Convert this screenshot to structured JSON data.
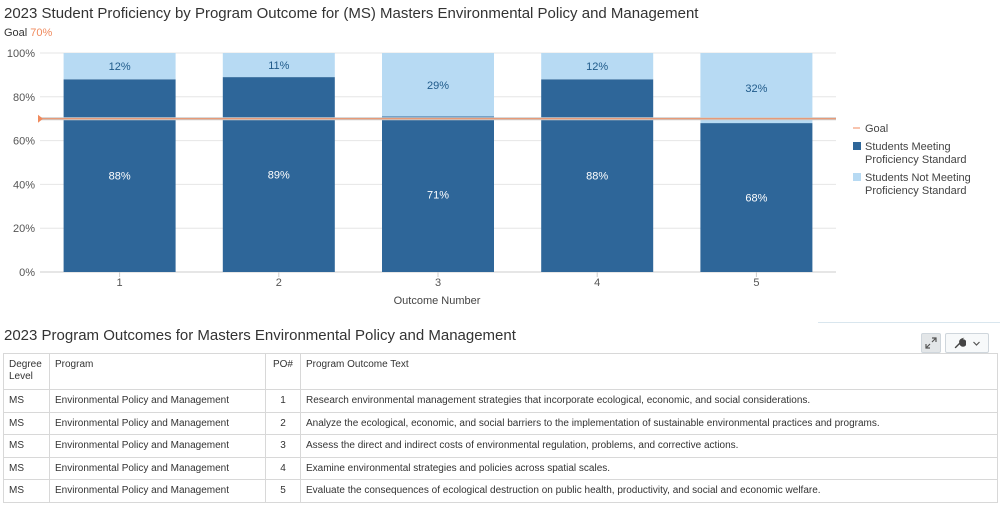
{
  "chart_title": "2023 Student Proficiency by Program Outcome for (MS) Masters Environmental Policy and Management",
  "goal_caption": {
    "label": "Goal",
    "value": "70%"
  },
  "chart_data": {
    "type": "bar",
    "stacked": true,
    "categories": [
      "1",
      "2",
      "3",
      "4",
      "5"
    ],
    "series": [
      {
        "name": "Students Meeting Proficiency Standard",
        "values": [
          88,
          89,
          71,
          88,
          68
        ],
        "labels": [
          "88%",
          "89%",
          "71%",
          "88%",
          "68%"
        ]
      },
      {
        "name": "Students Not Meeting Proficiency Standard",
        "values": [
          12,
          11,
          29,
          12,
          32
        ],
        "labels": [
          "12%",
          "11%",
          "29%",
          "12%",
          "32%"
        ]
      }
    ],
    "goal": {
      "name": "Goal",
      "value": 70
    },
    "xlabel": "Outcome Number",
    "ylabel": "",
    "ylim": [
      0,
      100
    ],
    "yticks": [
      "0%",
      "20%",
      "40%",
      "60%",
      "80%",
      "100%"
    ],
    "grid": true,
    "legend_position": "right",
    "colors": {
      "meeting": "#2e6699",
      "not_meeting": "#b7daf3",
      "goal": "#f08a5d"
    }
  },
  "legend": {
    "goal": "Goal",
    "meeting": [
      "Students Meeting",
      "Proficiency Standard"
    ],
    "not_meeting": [
      "Students Not Meeting",
      "Proficiency Standard"
    ]
  },
  "table": {
    "title": "2023 Program Outcomes for Masters Environmental Policy and Management",
    "headers": {
      "degree": [
        "Degree",
        "Level"
      ],
      "program": "Program",
      "po": "PO#",
      "text": "Program Outcome Text"
    },
    "rows": [
      {
        "degree": "MS",
        "program": "Environmental Policy and Management",
        "po": "1",
        "text": "Research environmental management strategies that incorporate ecological, economic, and social considerations."
      },
      {
        "degree": "MS",
        "program": "Environmental Policy and Management",
        "po": "2",
        "text": "Analyze the ecological, economic, and social barriers to the implementation of sustainable environmental practices and programs."
      },
      {
        "degree": "MS",
        "program": "Environmental Policy and Management",
        "po": "3",
        "text": "Assess the direct and indirect costs of environmental regulation, problems, and corrective actions."
      },
      {
        "degree": "MS",
        "program": "Environmental Policy and Management",
        "po": "4",
        "text": "Examine environmental strategies and policies across spatial scales."
      },
      {
        "degree": "MS",
        "program": "Environmental Policy and Management",
        "po": "5",
        "text": "Evaluate the consequences of ecological destruction on public health, productivity, and social and economic welfare."
      }
    ]
  },
  "toolbar": {
    "expand_icon": "expand-icon",
    "wrench_icon": "wrench-icon",
    "dropdown_icon": "chevron-down-icon"
  }
}
